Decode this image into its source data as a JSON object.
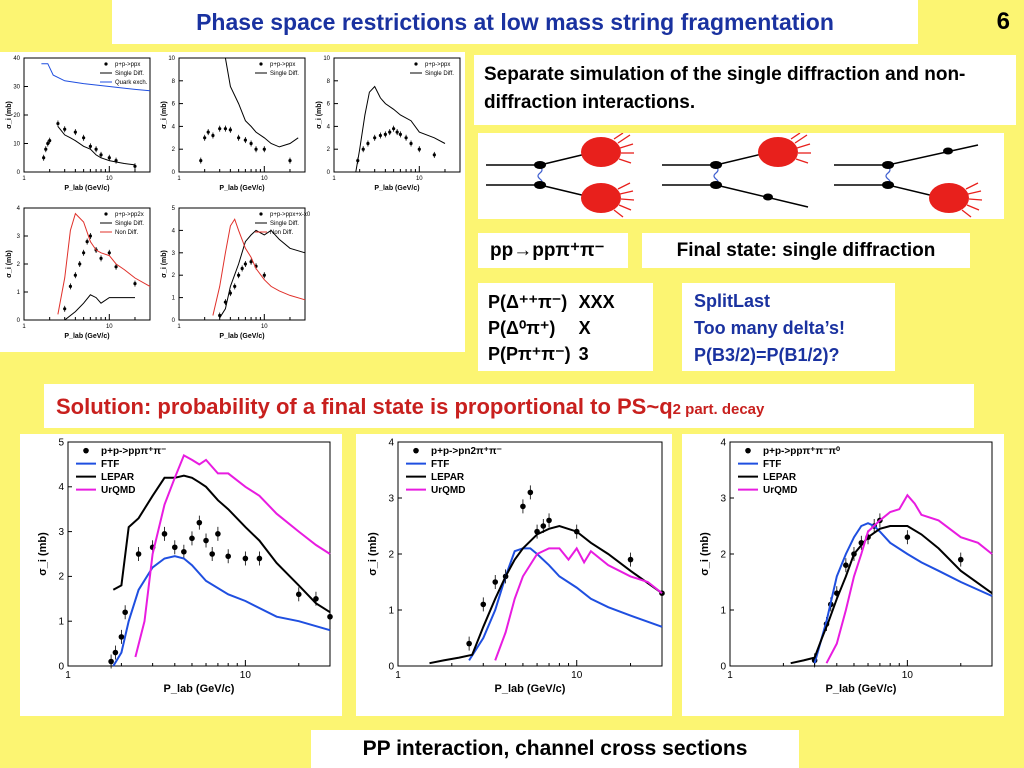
{
  "title": "Phase space restrictions at low mass string fragmentation",
  "slide_number": "6",
  "sim_text": "Separate simulation of the single diffraction and non-diffraction interactions.",
  "channel": "pp→ppπ⁺π⁻",
  "final_state": "Final state: single diffraction",
  "probs": [
    {
      "label": "P(Δ⁺⁺π⁻)",
      "value": "XXX"
    },
    {
      "label": "P(Δ⁰π⁺)",
      "value": "X"
    },
    {
      "label": "P(Pπ⁺π⁻)",
      "value": "3"
    }
  ],
  "split": [
    "SplitLast",
    "Too many delta’s!",
    "P(B3/2)=P(B1/2)?"
  ],
  "solution_main": "Solution: probability of a final state is proportional to PS~q",
  "solution_sub": "2 part. decay",
  "footer": "PP interaction, channel cross sections",
  "colors": {
    "background": "#fcf572",
    "title": "#1a32a0",
    "solution": "#c8201e",
    "blue": "#1f4fe0",
    "red": "#e0302a",
    "magenta": "#e81ce0"
  },
  "chart_data": [
    {
      "type": "line",
      "xscale": "log",
      "xlim": [
        1,
        30
      ],
      "ylim": [
        0,
        40
      ],
      "yticks": [
        0,
        10,
        20,
        30,
        40
      ],
      "xticks": [
        1,
        10
      ],
      "xlabel": "P_lab (GeV/c)",
      "ylabel": "σ_i (mb)",
      "legend": "top-right",
      "series": [
        {
          "name": "p+p->ppx",
          "kind": "points",
          "color": "#000",
          "x": [
            1.7,
            1.8,
            1.9,
            2.0,
            2.5,
            3,
            4,
            5,
            6,
            7,
            8,
            10,
            12,
            20
          ],
          "y": [
            5,
            8,
            10,
            11,
            17,
            15,
            14,
            12,
            9,
            8,
            6,
            5,
            4,
            2
          ]
        },
        {
          "name": "Single Diff.",
          "kind": "line",
          "color": "#000",
          "x": [
            2.5,
            3,
            3.5,
            4,
            5,
            6,
            7,
            8,
            10,
            12,
            15,
            20
          ],
          "y": [
            16,
            13,
            12,
            11,
            9,
            8,
            6,
            5,
            4,
            3.5,
            3,
            2.5
          ]
        },
        {
          "name": "Quark exch.",
          "kind": "line",
          "color": "#1f4fe0",
          "x": [
            1.6,
            1.9,
            2.2,
            3,
            5,
            10,
            20,
            30
          ],
          "y": [
            38,
            38,
            34,
            32,
            31,
            30,
            29,
            28.5
          ]
        }
      ]
    },
    {
      "type": "line",
      "xscale": "log",
      "xlim": [
        1,
        30
      ],
      "ylim": [
        0,
        10
      ],
      "yticks": [
        0,
        2,
        4,
        6,
        8,
        10
      ],
      "xticks": [
        1,
        10
      ],
      "xlabel": "P_lab (GeV/c)",
      "ylabel": "σ_i (mb)",
      "legend": "top-right",
      "series": [
        {
          "name": "p+p->ppx",
          "kind": "points",
          "color": "#000",
          "x": [
            1.8,
            2.0,
            2.2,
            2.5,
            3,
            3.5,
            4,
            5,
            6,
            7,
            8,
            10,
            20
          ],
          "y": [
            1,
            3,
            3.5,
            3.2,
            3.8,
            3.8,
            3.7,
            3,
            2.8,
            2.5,
            2,
            2,
            1
          ]
        },
        {
          "name": "Single Diff.",
          "kind": "line",
          "color": "#000",
          "x": [
            3.5,
            4,
            5,
            6,
            7,
            8,
            10,
            12,
            15,
            20,
            25
          ],
          "y": [
            10,
            7.5,
            6,
            4.5,
            4,
            3.5,
            3,
            2.5,
            2.2,
            2.5,
            3
          ]
        }
      ]
    },
    {
      "type": "line",
      "xscale": "log",
      "xlim": [
        1,
        30
      ],
      "ylim": [
        0,
        10
      ],
      "yticks": [
        0,
        2,
        4,
        6,
        8,
        10
      ],
      "xticks": [
        1,
        10
      ],
      "xlabel": "P_lab (GeV/c)",
      "ylabel": "σ_i (mb)",
      "legend": "top-right",
      "series": [
        {
          "name": "p+p->ppx",
          "kind": "points",
          "color": "#000",
          "x": [
            1.9,
            2.2,
            2.5,
            3,
            3.5,
            4,
            4.5,
            5,
            5.5,
            6,
            7,
            8,
            10,
            15
          ],
          "y": [
            1,
            2,
            2.5,
            3,
            3.2,
            3.3,
            3.5,
            3.8,
            3.5,
            3.3,
            3,
            2.5,
            2,
            1.5
          ]
        },
        {
          "name": "Single Diff.",
          "kind": "line",
          "color": "#000",
          "x": [
            1.8,
            2.0,
            2.3,
            2.6,
            3,
            3.5,
            4,
            5,
            6,
            8,
            10,
            15,
            20
          ],
          "y": [
            0,
            2,
            5,
            7,
            7.5,
            6.5,
            6,
            5.5,
            5,
            4.5,
            3.5,
            3,
            2.5
          ]
        }
      ]
    },
    {
      "type": "line",
      "xscale": "log",
      "xlim": [
        1,
        30
      ],
      "ylim": [
        0,
        4
      ],
      "yticks": [
        0,
        1,
        2,
        3,
        4
      ],
      "xticks": [
        1,
        10
      ],
      "xlabel": "P_lab (GeV/c)",
      "ylabel": "σ_i (mb)",
      "legend": "top-right",
      "series": [
        {
          "name": "p+p->pp2x",
          "kind": "points",
          "color": "#000",
          "x": [
            3,
            3.5,
            4,
            4.5,
            5,
            5.5,
            6,
            7,
            8,
            10,
            12,
            20
          ],
          "y": [
            0.4,
            1.2,
            1.6,
            2,
            2.4,
            2.8,
            3,
            2.5,
            2.2,
            2.4,
            1.9,
            1.3
          ]
        },
        {
          "name": "Single Diff.",
          "kind": "line",
          "color": "#000",
          "x": [
            3,
            4,
            5,
            6,
            7,
            8,
            10,
            12,
            15,
            20
          ],
          "y": [
            0,
            0.3,
            0.6,
            0.9,
            0.8,
            0.6,
            0.8,
            0.8,
            0.8,
            0.8
          ]
        },
        {
          "name": "Non Diff.",
          "kind": "line",
          "color": "#e0302a",
          "x": [
            2.5,
            3,
            3.5,
            4,
            5,
            6,
            7,
            8,
            10,
            12,
            15,
            20,
            30
          ],
          "y": [
            0.2,
            1.5,
            3.2,
            3.8,
            3.5,
            2.8,
            2.5,
            2.4,
            2.3,
            2.0,
            1.8,
            1.5,
            1.2
          ]
        }
      ]
    },
    {
      "type": "line",
      "xscale": "log",
      "xlim": [
        1,
        30
      ],
      "ylim": [
        0,
        5
      ],
      "yticks": [
        0,
        1,
        2,
        3,
        4,
        5
      ],
      "xticks": [
        1,
        10
      ],
      "xlabel": "P_lab (GeV/c)",
      "ylabel": "σ_i (mb)",
      "legend": "top-right",
      "series": [
        {
          "name": "p+p->ppx+x-x0",
          "kind": "points",
          "color": "#000",
          "x": [
            3,
            3.5,
            4,
            4.5,
            5,
            5.5,
            6,
            7,
            8,
            10
          ],
          "y": [
            0.2,
            0.8,
            1.2,
            1.5,
            2,
            2.3,
            2.5,
            2.6,
            2.4,
            2.0
          ]
        },
        {
          "name": "Single Diff.",
          "kind": "line",
          "color": "#000",
          "x": [
            3,
            3.5,
            4,
            5,
            6,
            7,
            8,
            10,
            12,
            15,
            20,
            30
          ],
          "y": [
            0.1,
            0.5,
            1.5,
            2.5,
            3.5,
            3.8,
            4,
            3.8,
            4,
            3.6,
            3.2,
            3
          ]
        },
        {
          "name": "Non Diff.",
          "kind": "line",
          "color": "#e0302a",
          "x": [
            2.5,
            3,
            3.5,
            4,
            4.5,
            5,
            6,
            7,
            8,
            10,
            12,
            15,
            20,
            30
          ],
          "y": [
            0.2,
            1.5,
            3,
            4.2,
            4.5,
            4,
            3.2,
            2.8,
            2.3,
            1.8,
            1.5,
            1.3,
            1.1,
            0.9
          ]
        }
      ]
    },
    {
      "type": "line",
      "xscale": "log",
      "xlim": [
        1,
        30
      ],
      "ylim": [
        0,
        5
      ],
      "yticks": [
        0,
        1,
        2,
        3,
        4,
        5
      ],
      "xticks": [
        1,
        10
      ],
      "xlabel": "P_lab (GeV/c)",
      "ylabel": "σ_i (mb)",
      "legend": "top-left",
      "series": [
        {
          "name": "p+p->ppπ⁺π⁻",
          "kind": "points",
          "color": "#000",
          "x": [
            1.75,
            1.85,
            2.0,
            2.1,
            2.5,
            3.0,
            3.5,
            4.0,
            4.5,
            5.0,
            5.5,
            6.0,
            6.5,
            7.0,
            8.0,
            10,
            12,
            20,
            25,
            30
          ],
          "y": [
            0.1,
            0.3,
            0.65,
            1.2,
            2.5,
            2.65,
            2.95,
            2.65,
            2.55,
            2.85,
            3.2,
            2.8,
            2.5,
            2.95,
            2.45,
            2.4,
            2.4,
            1.6,
            1.5,
            1.1
          ]
        },
        {
          "name": "FTF",
          "kind": "line",
          "color": "#1f4fe0",
          "x": [
            1.8,
            2.0,
            2.2,
            2.5,
            3,
            3.5,
            4,
            4.5,
            5,
            6,
            8,
            10,
            15,
            20,
            30
          ],
          "y": [
            0,
            0.3,
            1.0,
            1.7,
            2.2,
            2.4,
            2.45,
            2.4,
            2.25,
            1.9,
            1.6,
            1.45,
            1.1,
            1.0,
            0.8
          ]
        },
        {
          "name": "LEPAR",
          "kind": "line",
          "color": "#000",
          "x": [
            1.8,
            2.0,
            2.2,
            2.5,
            3,
            3.5,
            4,
            4.5,
            5,
            5.5,
            6,
            7,
            8,
            10,
            12,
            15,
            20,
            25,
            30
          ],
          "y": [
            1.7,
            1.8,
            3.1,
            3.3,
            3.8,
            4.2,
            4.2,
            4.25,
            4.2,
            4.1,
            4.0,
            3.7,
            3.5,
            3.1,
            2.8,
            2.3,
            1.8,
            1.4,
            1.2
          ]
        },
        {
          "name": "UrQMD",
          "kind": "line",
          "color": "#e81ce0",
          "x": [
            2.4,
            2.7,
            3,
            3.5,
            4,
            4.5,
            5,
            5.5,
            6,
            7,
            8,
            10,
            12,
            15,
            20,
            25,
            30
          ],
          "y": [
            0.2,
            1.0,
            2.5,
            3.6,
            4.2,
            4.7,
            4.6,
            4.5,
            4.6,
            4.3,
            4.3,
            4.0,
            3.8,
            3.4,
            3.0,
            2.7,
            2.5
          ]
        }
      ]
    },
    {
      "type": "line",
      "xscale": "log",
      "xlim": [
        1,
        30
      ],
      "ylim": [
        0,
        4
      ],
      "yticks": [
        0,
        1,
        2,
        3,
        4
      ],
      "xticks": [
        1,
        10
      ],
      "xlabel": "P_lab (GeV/c)",
      "ylabel": "σ_i (mb)",
      "legend": "top-left",
      "series": [
        {
          "name": "p+p->pn2π⁺π⁻",
          "kind": "points",
          "color": "#000",
          "x": [
            2.5,
            3,
            3.5,
            4,
            5,
            5.5,
            6,
            6.5,
            7,
            10,
            20,
            30
          ],
          "y": [
            0.4,
            1.1,
            1.5,
            1.6,
            2.85,
            3.1,
            2.4,
            2.5,
            2.6,
            2.4,
            1.9,
            1.3
          ]
        },
        {
          "name": "FTF",
          "kind": "line",
          "color": "#1f4fe0",
          "x": [
            2.5,
            3,
            3.5,
            4,
            4.5,
            5,
            5.5,
            6,
            7,
            8,
            10,
            12,
            15,
            20,
            30
          ],
          "y": [
            0.1,
            0.5,
            1.0,
            1.6,
            2.05,
            2.1,
            2.1,
            2.0,
            1.8,
            1.6,
            1.4,
            1.2,
            1.05,
            0.9,
            0.7
          ]
        },
        {
          "name": "LEPAR",
          "kind": "line",
          "color": "#000",
          "x": [
            1.5,
            1.8,
            2.2,
            2.6,
            3,
            3.5,
            4,
            4.5,
            5,
            6,
            7,
            8,
            10,
            12,
            15,
            20,
            30
          ],
          "y": [
            0.05,
            0.1,
            0.15,
            0.2,
            0.7,
            1.2,
            1.6,
            1.9,
            2.1,
            2.35,
            2.45,
            2.5,
            2.4,
            2.2,
            2.0,
            1.7,
            1.3
          ]
        },
        {
          "name": "UrQMD",
          "kind": "line",
          "color": "#e81ce0",
          "x": [
            3.5,
            4,
            4.5,
            5,
            6,
            7,
            8,
            9,
            10,
            11,
            12,
            15,
            20,
            25,
            30
          ],
          "y": [
            0.1,
            0.6,
            1.2,
            1.6,
            2.0,
            2.1,
            2.1,
            1.9,
            2.1,
            1.85,
            2.05,
            1.8,
            1.6,
            1.5,
            1.3
          ]
        }
      ]
    },
    {
      "type": "line",
      "xscale": "log",
      "xlim": [
        1,
        30
      ],
      "ylim": [
        0,
        4
      ],
      "yticks": [
        0,
        1,
        2,
        3,
        4
      ],
      "xticks": [
        1,
        10
      ],
      "xlabel": "P_lab (GeV/c)",
      "ylabel": "σ_i (mb)",
      "legend": "top-left",
      "series": [
        {
          "name": "p+p->ppπ⁺π⁻π⁰",
          "kind": "points",
          "color": "#000",
          "x": [
            3,
            3.5,
            3.7,
            4,
            4.5,
            5,
            5.5,
            6,
            6.5,
            7,
            10,
            20
          ],
          "y": [
            0.1,
            0.75,
            1.1,
            1.3,
            1.8,
            2.0,
            2.2,
            2.3,
            2.5,
            2.6,
            2.3,
            1.9
          ]
        },
        {
          "name": "FTF",
          "kind": "line",
          "color": "#1f4fe0",
          "x": [
            3,
            3.5,
            4,
            4.5,
            5,
            5.5,
            6,
            6.5,
            7,
            8,
            10,
            12,
            15,
            20,
            30
          ],
          "y": [
            0.05,
            0.8,
            1.6,
            2.0,
            2.3,
            2.5,
            2.55,
            2.5,
            2.4,
            2.2,
            2.0,
            1.85,
            1.7,
            1.5,
            1.25
          ]
        },
        {
          "name": "LEPAR",
          "kind": "line",
          "color": "#000",
          "x": [
            2.2,
            2.6,
            3,
            3.3,
            3.6,
            4,
            4.5,
            5,
            6,
            7,
            8,
            10,
            12,
            15,
            20,
            30
          ],
          "y": [
            0.05,
            0.1,
            0.15,
            0.5,
            0.8,
            1.2,
            1.6,
            2.0,
            2.3,
            2.45,
            2.5,
            2.5,
            2.35,
            2.1,
            1.7,
            1.3
          ]
        },
        {
          "name": "UrQMD",
          "kind": "line",
          "color": "#e81ce0",
          "x": [
            3.5,
            4,
            4.5,
            5,
            5.5,
            6,
            7,
            8,
            9,
            10,
            11,
            12,
            15,
            20,
            25,
            30
          ],
          "y": [
            0.05,
            0.4,
            1.0,
            1.6,
            2.0,
            2.4,
            2.6,
            2.75,
            2.8,
            3.05,
            2.9,
            2.7,
            2.6,
            2.3,
            2.2,
            2.0
          ]
        }
      ]
    }
  ]
}
